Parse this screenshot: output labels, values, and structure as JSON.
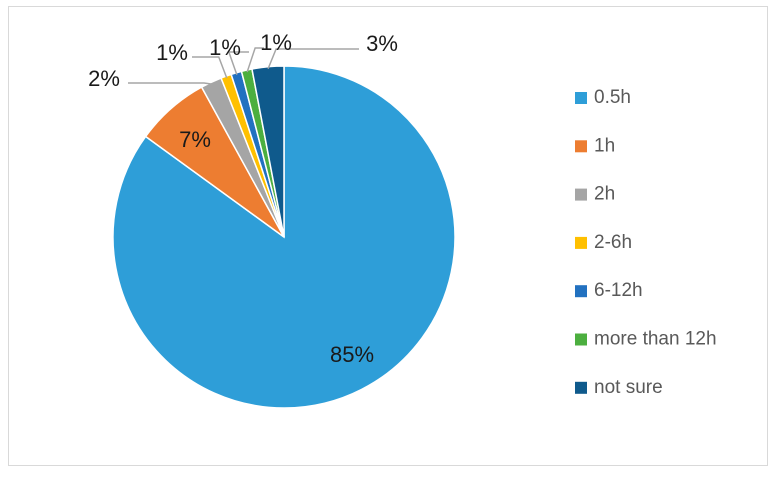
{
  "chart_data": {
    "type": "pie",
    "categories": [
      "0.5h",
      "1h",
      "2h",
      "2-6h",
      "6-12h",
      "more than 12h",
      "not sure"
    ],
    "values": [
      85,
      7,
      2,
      1,
      1,
      1,
      3
    ],
    "data_labels": [
      "85%",
      "7%",
      "2%",
      "1%",
      "1%",
      "1%",
      "3%"
    ],
    "colors": [
      "#2e9ed8",
      "#ed7d31",
      "#a5a5a5",
      "#ffc000",
      "#2271c0",
      "#4caf3f",
      "#0f5a8c"
    ],
    "start_angle_deg": 0,
    "direction": "clockwise",
    "legend_position": "right",
    "title": ""
  }
}
